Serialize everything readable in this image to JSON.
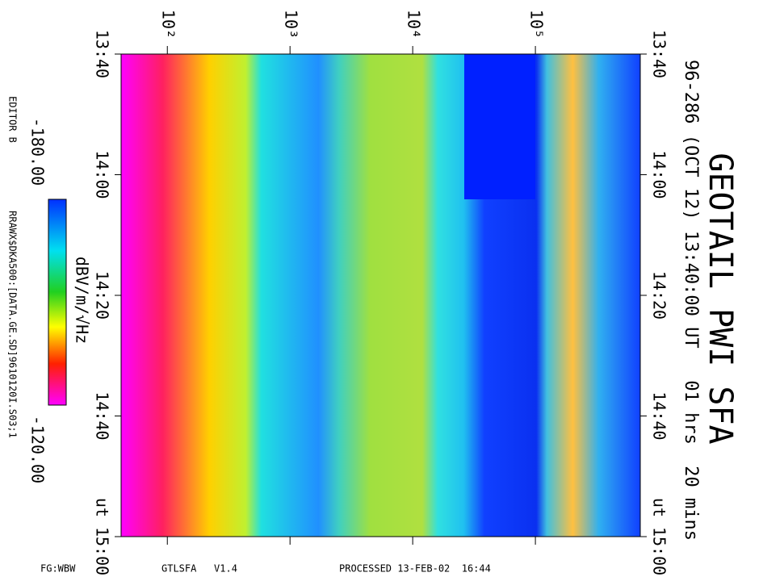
{
  "chart_data": {
    "type": "spectrogram",
    "title": "GEOTAIL PWI SFA",
    "subtitle": "96-286 (OCT 12) 13:40:00 UT   01 hrs  20 mins",
    "log_x": true,
    "xlim": [
      42,
      716000
    ],
    "xticks": [
      {
        "value": 100,
        "label": "10²"
      },
      {
        "value": 1000,
        "label": "10³"
      },
      {
        "value": 10000,
        "label": "10⁴"
      },
      {
        "value": 100000,
        "label": "10⁵"
      }
    ],
    "time_ticks": [
      "13:40",
      "14:00",
      "14:20",
      "14:40",
      "ut 15:00"
    ],
    "colorbar": {
      "label": "dBV/m/√Hz",
      "min": {
        "value": -180,
        "label": "-180.00"
      },
      "max": {
        "value": -120,
        "label": "-120.00"
      }
    },
    "editor": "EDITOR B",
    "file": "RRAWX$DKA500:[DATA.GE.SD]9610120I.S03;1",
    "footer": [
      "FG:WBW",
      "GTLSFA   V1.4",
      "PROCESSED 13-FEB-02  16:44"
    ]
  }
}
